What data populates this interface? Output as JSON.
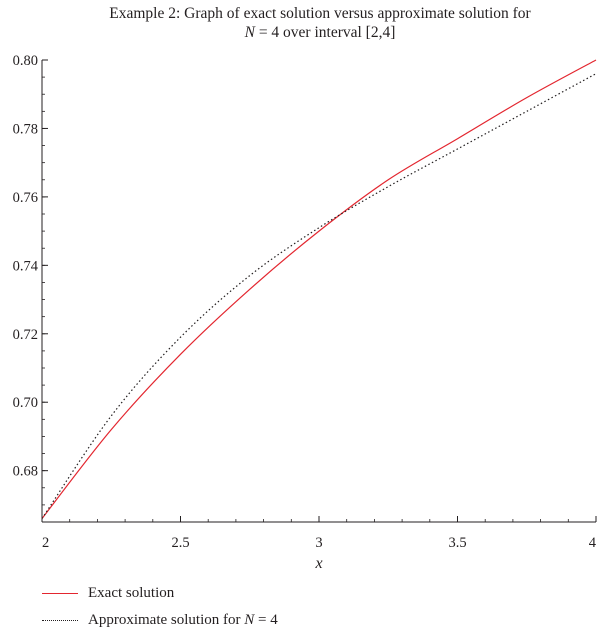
{
  "title": {
    "line1": "Example 2: Graph of exact solution versus approximate solution for",
    "line2_var": "N",
    "line2_rest": " = 4 over interval [2,4]"
  },
  "legend": {
    "exact": "Exact solution",
    "approx_prefix": "Approximate solution for ",
    "approx_var": "N",
    "approx_suffix": " = 4"
  },
  "colors": {
    "exact": "#e3262f",
    "approx": "#231f20",
    "axis": "#231f20"
  },
  "chart_data": {
    "type": "line",
    "title": "Example 2: Graph of exact solution versus approximate solution for N = 4 over interval [2,4]",
    "xlabel": "x",
    "ylabel": "",
    "xlim": [
      2,
      4
    ],
    "ylim": [
      0.665,
      0.8
    ],
    "x_ticks": [
      2,
      2.5,
      3,
      3.5,
      4
    ],
    "x_tick_labels": [
      "2",
      "2.5",
      "3",
      "3.5",
      "4"
    ],
    "y_ticks": [
      0.68,
      0.7,
      0.72,
      0.74,
      0.76,
      0.78,
      0.8
    ],
    "y_tick_labels": [
      "0.68",
      "0.70",
      "0.72",
      "0.74",
      "0.76",
      "0.78",
      "0.80"
    ],
    "grid": false,
    "legend_position": "bottom-left",
    "series": [
      {
        "name": "Exact solution",
        "style": "solid",
        "x": [
          2.0,
          2.25,
          2.5,
          2.75,
          3.0,
          3.25,
          3.5,
          3.75,
          4.0
        ],
        "y": [
          0.666,
          0.692,
          0.714,
          0.733,
          0.75,
          0.765,
          0.777,
          0.789,
          0.8
        ]
      },
      {
        "name": "Approximate solution for N = 4",
        "style": "dotted",
        "x": [
          2.0,
          2.25,
          2.5,
          2.75,
          3.0,
          3.25,
          3.5,
          3.75,
          4.0
        ],
        "y": [
          0.666,
          0.696,
          0.719,
          0.737,
          0.751,
          0.763,
          0.774,
          0.785,
          0.796
        ]
      }
    ]
  }
}
